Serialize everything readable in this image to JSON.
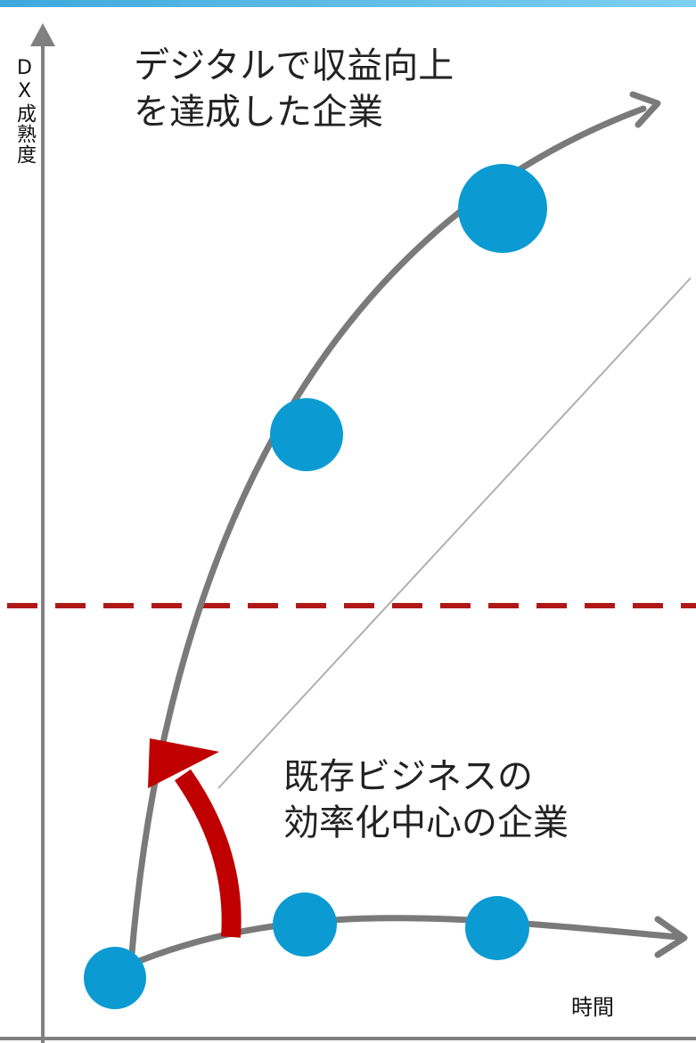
{
  "colors": {
    "top_bar_start": "#3fa9dc",
    "top_bar_end": "#7fd0f0",
    "axis": "#808080",
    "curve": "#7a7a7a",
    "thin_line": "#b0b0b0",
    "dashed_line": "#b01818",
    "dot": "#0b9bd2",
    "shift_arrow": "#c00000"
  },
  "axes": {
    "y_label": "DX成熟度",
    "x_label": "時間"
  },
  "curves": {
    "top": {
      "label_line1": "デジタルで収益向上",
      "label_line2": "を達成した企業"
    },
    "bottom": {
      "label_line1": "既存ビジネスの",
      "label_line2": "効率化中心の企業"
    }
  },
  "icons": {
    "axis_arrow": "arrow-up-icon",
    "curve_arrow": "arrow-head-icon",
    "shift_arrow": "curved-arrow-icon"
  }
}
